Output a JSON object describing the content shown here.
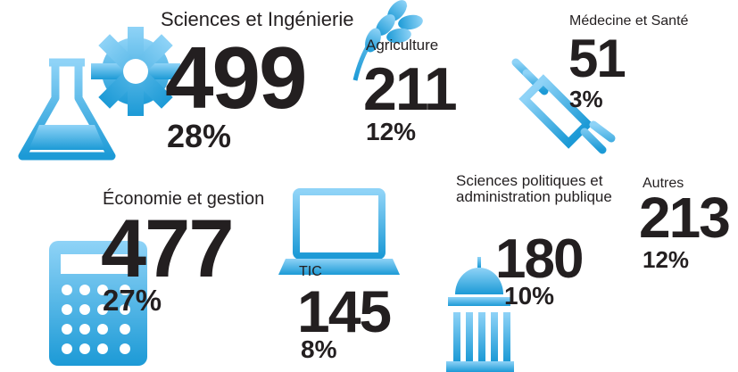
{
  "items": [
    {
      "label": "Sciences et Ingénierie",
      "count": "499",
      "percent": "28%"
    },
    {
      "label": "Agriculture",
      "count": "211",
      "percent": "12%"
    },
    {
      "label": "Médecine et Santé",
      "count": "51",
      "percent": "3%"
    },
    {
      "label": "Économie et gestion",
      "count": "477",
      "percent": "27%"
    },
    {
      "label": "TIC",
      "count": "145",
      "percent": "8%"
    },
    {
      "label": "Sciences politiques et administration publique",
      "count": "180",
      "percent": "10%"
    },
    {
      "label": "Autres",
      "count": "213",
      "percent": "12%"
    }
  ]
}
